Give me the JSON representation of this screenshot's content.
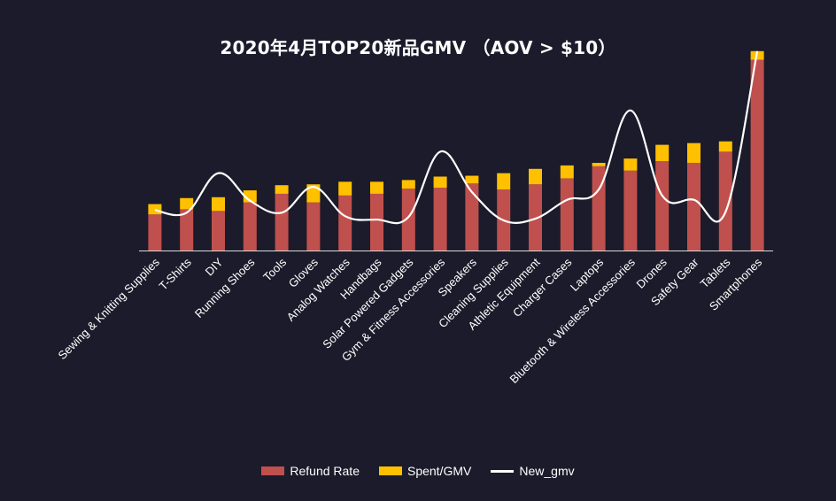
{
  "chart_data": {
    "type": "bar",
    "title": "2020年4月TOP20新品GMV （AOV > $10）",
    "categories": [
      "Sewing & Knitting Supplies",
      "T-Shirts",
      "DIY",
      "Running Shoes",
      "Tools",
      "Gloves",
      "Analog Watches",
      "Handbags",
      "Solar Powered Gadgets",
      "Gym & Fitness Accessories",
      "Speakers",
      "Cleaning Supplies",
      "Athletic Equipment",
      "Charger Cases",
      "Laptops",
      "Bluetooth & Wireless Accessories",
      "Drones",
      "Safety Gear",
      "Tablets",
      "Smartphones"
    ],
    "series": [
      {
        "name": "Refund Rate",
        "kind": "bar-stack",
        "color": "#c0504d",
        "values": [
          42,
          48,
          46,
          56,
          66,
          56,
          64,
          66,
          72,
          73,
          78,
          71,
          77,
          84,
          98,
          93,
          104,
          102,
          115,
          222
        ]
      },
      {
        "name": "Spent/GMV",
        "kind": "bar-stack",
        "color": "#ffc000",
        "values": [
          12,
          13,
          16,
          14,
          10,
          21,
          16,
          14,
          10,
          13,
          9,
          19,
          18,
          15,
          4,
          14,
          19,
          23,
          12,
          10
        ]
      },
      {
        "name": "New_gmv",
        "kind": "line",
        "color": "#ffffff",
        "values": [
          47,
          44,
          90,
          58,
          44,
          74,
          40,
          36,
          39,
          115,
          68,
          35,
          37,
          59,
          71,
          163,
          64,
          59,
          45,
          232
        ]
      }
    ],
    "ylim": [
      0,
      240
    ],
    "grid": false,
    "legend": "bottom-center"
  }
}
